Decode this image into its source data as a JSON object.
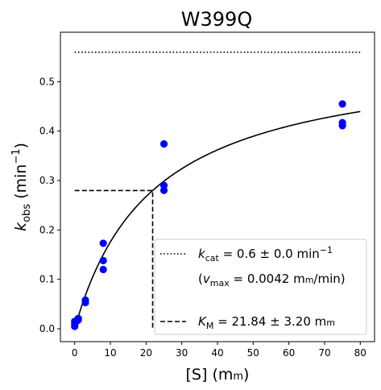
{
  "chart_data": {
    "type": "scatter",
    "title": "W399Q",
    "xlabel": {
      "main": "[S] (m",
      "unit_sc": "m",
      "close": ")"
    },
    "ylabel": {
      "italic": "k",
      "sub": "obs",
      "unit": " (min",
      "sup": "−1",
      "close": ")"
    },
    "xlim": [
      -4,
      84
    ],
    "ylim": [
      -0.026,
      0.6
    ],
    "xticks": [
      0,
      10,
      20,
      30,
      40,
      50,
      60,
      70,
      80
    ],
    "yticks": [
      0.0,
      0.1,
      0.2,
      0.3,
      0.4,
      0.5
    ],
    "series": [
      {
        "kind": "points",
        "color": "#0000ff",
        "x": [
          0,
          0,
          0,
          0.5,
          1,
          1,
          1,
          3,
          3,
          8,
          8,
          8,
          25,
          25,
          25,
          75,
          75,
          75
        ],
        "y": [
          0.005,
          0.01,
          0.015,
          0.015,
          0.018,
          0.02,
          0.021,
          0.053,
          0.058,
          0.12,
          0.138,
          0.173,
          0.28,
          0.29,
          0.374,
          0.411,
          0.417,
          0.455
        ]
      },
      {
        "kind": "fit",
        "color": "#000000",
        "model": "michaelis-menten",
        "kcat": 0.5596,
        "Km": 21.84,
        "x_range": [
          0,
          80
        ]
      },
      {
        "kind": "kcat-line",
        "color": "#000000",
        "y": 0.5596,
        "x_range": [
          0,
          80
        ]
      },
      {
        "kind": "km-guide",
        "color": "#000000",
        "x": 21.84,
        "y": 0.2798
      }
    ],
    "legend": {
      "position": "lower-right",
      "kcat_label": {
        "italic": "k",
        "sub": "cat",
        "text": " = 0.6 ± 0.0 min",
        "sup": "−1"
      },
      "vmax_label": {
        "open": "(",
        "italic": "v",
        "sub": "max",
        "text": " = 0.0042 m",
        "unit_sc": "m",
        "close": "/min)"
      },
      "km_label": {
        "italic": "K",
        "sub": "M",
        "text": " = 21.84 ± 3.20 m",
        "unit_sc": "m"
      }
    },
    "grid": false
  }
}
